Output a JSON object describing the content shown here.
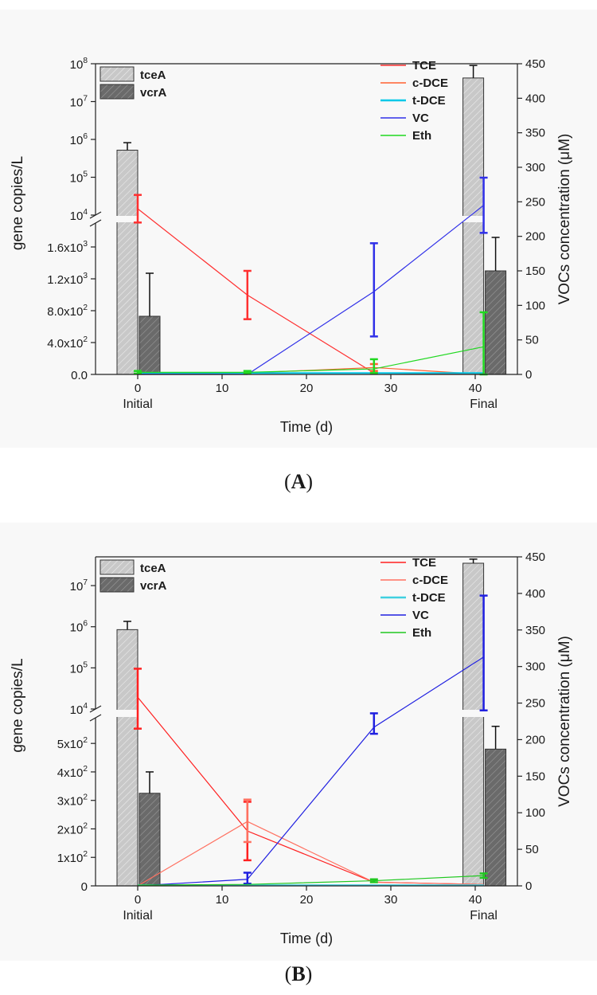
{
  "chart_data": [
    {
      "type": "bar",
      "panel": "A",
      "xlabel": "Time (d)",
      "ylabel_left": "gene copies/L",
      "ylabel_right": "VOCs concentration (μM)",
      "x_ticks": [
        "0",
        "10",
        "20",
        "30",
        "40"
      ],
      "x_category_labels": [
        "Initial",
        "Final"
      ],
      "x_range": [
        -5,
        45
      ],
      "left_axis_lower": {
        "ticks": [
          "0.0",
          "4.0x10^2",
          "8.0x10^2",
          "1.2x10^3",
          "1.6x10^3"
        ],
        "range": [
          0,
          1900
        ]
      },
      "left_axis_upper": {
        "scale": "log",
        "ticks": [
          "10^4",
          "10^5",
          "10^6",
          "10^7",
          "10^8"
        ],
        "range": [
          10000,
          100000000
        ]
      },
      "right_axis": {
        "ticks": [
          "0",
          "50",
          "100",
          "150",
          "200",
          "250",
          "300",
          "350",
          "400",
          "450"
        ],
        "range": [
          0,
          450
        ]
      },
      "bar_legend": [
        "tceA",
        "vcrA"
      ],
      "line_legend": [
        "TCE",
        "c-DCE",
        "t-DCE",
        "VC",
        "Eth"
      ],
      "bars": [
        {
          "series": "tceA",
          "category": "Initial",
          "value": 520000,
          "err_high": 820000
        },
        {
          "series": "vcrA",
          "category": "Initial",
          "value": 730,
          "err_high": 1270
        },
        {
          "series": "tceA",
          "category": "Final",
          "value": 42000000,
          "err_high": 90000000
        },
        {
          "series": "vcrA",
          "category": "Final",
          "value": 1300,
          "err_high": 1720
        }
      ],
      "series": [
        {
          "name": "TCE",
          "color": "#ff3030",
          "x": [
            0,
            13,
            28,
            41
          ],
          "y": [
            240,
            115,
            2,
            0
          ],
          "err": [
            {
              "lo": 220,
              "hi": 260
            },
            {
              "lo": 80,
              "hi": 150
            },
            null,
            null
          ]
        },
        {
          "name": "c-DCE",
          "color": "#ff6030",
          "x": [
            0,
            13,
            28,
            41
          ],
          "y": [
            0,
            2,
            10,
            0
          ],
          "err": [
            null,
            null,
            {
              "lo": 5,
              "hi": 15
            },
            null
          ]
        },
        {
          "name": "t-DCE",
          "color": "#00c8e8",
          "x": [
            0,
            13,
            28,
            41
          ],
          "y": [
            2,
            2,
            2,
            2
          ],
          "err": [
            null,
            null,
            null,
            null
          ]
        },
        {
          "name": "VC",
          "color": "#3030e8",
          "x": [
            0,
            13,
            28,
            41
          ],
          "y": [
            0,
            0,
            120,
            245
          ],
          "err": [
            null,
            null,
            {
              "lo": 55,
              "hi": 190
            },
            {
              "lo": 205,
              "hi": 285
            }
          ]
        },
        {
          "name": "Eth",
          "color": "#20d820",
          "x": [
            0,
            13,
            28,
            41
          ],
          "y": [
            3,
            3,
            8,
            40
          ],
          "err": [
            {
              "lo": 1,
              "hi": 5
            },
            {
              "lo": 1,
              "hi": 5
            },
            {
              "lo": 2,
              "hi": 22
            },
            {
              "lo": 0,
              "hi": 90
            }
          ]
        }
      ]
    },
    {
      "type": "bar",
      "panel": "B",
      "xlabel": "Time (d)",
      "ylabel_left": "gene copies/L",
      "ylabel_right": "VOCs concentration (μM)",
      "x_ticks": [
        "0",
        "10",
        "20",
        "30",
        "40"
      ],
      "x_category_labels": [
        "Initial",
        "Final"
      ],
      "x_range": [
        -5,
        45
      ],
      "left_axis_lower": {
        "ticks": [
          "0",
          "1x10^2",
          "2x10^2",
          "3x10^2",
          "4x10^2",
          "5x10^2"
        ],
        "range": [
          0,
          590
        ]
      },
      "left_axis_upper": {
        "scale": "log",
        "ticks": [
          "10^4",
          "10^5",
          "10^6",
          "10^7"
        ],
        "range": [
          10000,
          50000000
        ]
      },
      "right_axis": {
        "ticks": [
          "0",
          "50",
          "100",
          "150",
          "200",
          "250",
          "300",
          "350",
          "400",
          "450"
        ],
        "range": [
          0,
          450
        ]
      },
      "bar_legend": [
        "tceA",
        "vcrA"
      ],
      "line_legend": [
        "TCE",
        "c-DCE",
        "t-DCE",
        "VC",
        "Eth"
      ],
      "bars": [
        {
          "series": "tceA",
          "category": "Initial",
          "value": 850000,
          "err_high": 1350000
        },
        {
          "series": "vcrA",
          "category": "Initial",
          "value": 325,
          "err_high": 400
        },
        {
          "series": "tceA",
          "category": "Final",
          "value": 35000000,
          "err_high": 44000000
        },
        {
          "series": "vcrA",
          "category": "Final",
          "value": 480,
          "err_high": 560
        }
      ],
      "series": [
        {
          "name": "TCE",
          "color": "#ff2020",
          "x": [
            0,
            13,
            28,
            41
          ],
          "y": [
            258,
            75,
            5,
            2
          ],
          "err": [
            {
              "lo": 215,
              "hi": 297
            },
            {
              "lo": 35,
              "hi": 115
            },
            null,
            null
          ]
        },
        {
          "name": "c-DCE",
          "color": "#ff7060",
          "x": [
            0,
            13,
            28,
            41
          ],
          "y": [
            0,
            88,
            5,
            2
          ],
          "err": [
            null,
            {
              "lo": 60,
              "hi": 118
            },
            null,
            null
          ]
        },
        {
          "name": "t-DCE",
          "color": "#40d0e0",
          "x": [
            0,
            13,
            28,
            41
          ],
          "y": [
            1,
            1,
            1,
            1
          ],
          "err": [
            null,
            null,
            null,
            null
          ]
        },
        {
          "name": "VC",
          "color": "#2020e0",
          "x": [
            0,
            13,
            28,
            41
          ],
          "y": [
            0,
            9,
            217,
            313
          ],
          "err": [
            null,
            {
              "lo": 3,
              "hi": 18
            },
            {
              "lo": 208,
              "hi": 236
            },
            {
              "lo": 240,
              "hi": 397
            }
          ]
        },
        {
          "name": "Eth",
          "color": "#20c820",
          "x": [
            0,
            13,
            28,
            41
          ],
          "y": [
            1,
            2,
            7,
            14
          ],
          "err": [
            null,
            null,
            {
              "lo": 5,
              "hi": 9
            },
            {
              "lo": 11,
              "hi": 17
            }
          ]
        }
      ]
    }
  ],
  "panel_letters": {
    "a": "A",
    "b": "B"
  }
}
